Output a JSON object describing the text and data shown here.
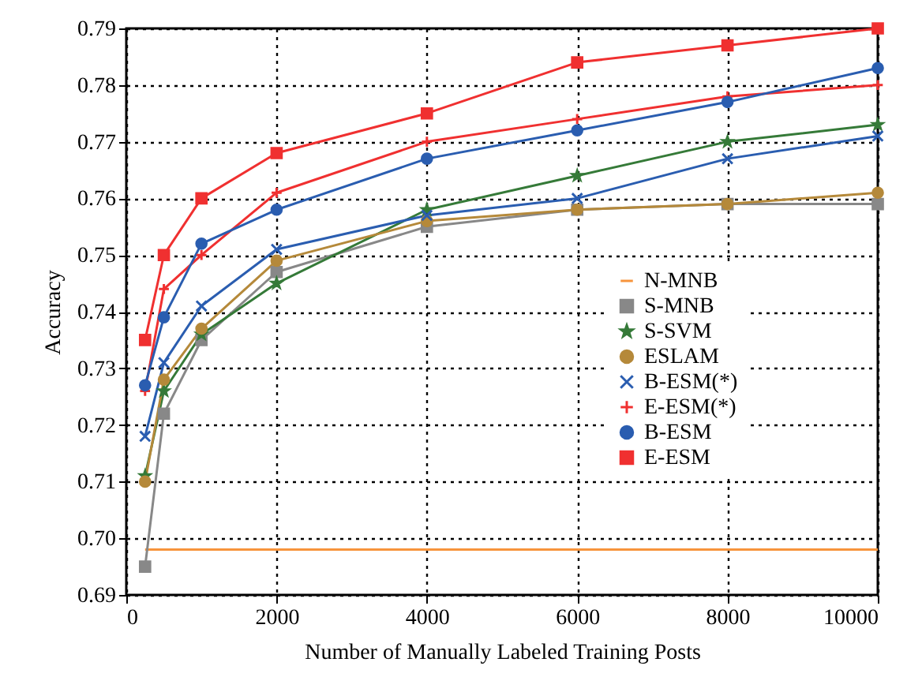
{
  "chart_data": {
    "type": "line",
    "xlabel": "Number of Manually Labeled Training Posts",
    "ylabel": "Accuracy",
    "x": [
      250,
      500,
      1000,
      2000,
      4000,
      6000,
      8000,
      10000
    ],
    "xlim": [
      0,
      10000
    ],
    "xticks": [
      0,
      2000,
      4000,
      6000,
      8000,
      10000
    ],
    "ylim": [
      0.69,
      0.79
    ],
    "yticks": [
      0.69,
      {
        "value": 0.7,
        "label": "0.70"
      },
      0.71,
      0.72,
      0.73,
      0.74,
      0.75,
      0.76,
      0.77,
      0.78,
      0.79
    ],
    "grid": true,
    "legend": "bottom right",
    "series": [
      {
        "name": "N-MNB",
        "color": "#f7943c",
        "marker": "none",
        "values": [
          0.698,
          0.698,
          0.698,
          0.698,
          0.698,
          0.698,
          0.698,
          0.698
        ]
      },
      {
        "name": "S-MNB",
        "color": "#888888",
        "marker": "square",
        "values": [
          0.695,
          0.722,
          0.735,
          0.747,
          0.755,
          0.758,
          0.759,
          0.759
        ]
      },
      {
        "name": "S-SVM",
        "color": "#357a38",
        "marker": "star",
        "values": [
          0.711,
          0.726,
          0.736,
          0.745,
          0.758,
          0.764,
          0.77,
          0.773
        ]
      },
      {
        "name": "ESLAM",
        "color": "#b5893a",
        "marker": "circle",
        "values": [
          0.71,
          0.728,
          0.737,
          0.749,
          0.756,
          0.758,
          0.759,
          0.761
        ]
      },
      {
        "name": "B-ESM(*)",
        "color": "#2a5db0",
        "marker": "cross",
        "values": [
          0.718,
          0.731,
          0.741,
          0.751,
          0.757,
          0.76,
          0.767,
          0.771
        ]
      },
      {
        "name": "E-ESM(*)",
        "color": "#f03030",
        "marker": "plus",
        "values": [
          0.726,
          0.744,
          0.75,
          0.761,
          0.77,
          0.774,
          0.778,
          0.78
        ]
      },
      {
        "name": "B-ESM",
        "color": "#2a5db0",
        "marker": "circle",
        "values": [
          0.727,
          0.739,
          0.752,
          0.758,
          0.767,
          0.772,
          0.777,
          0.783
        ]
      },
      {
        "name": "E-ESM",
        "color": "#f03030",
        "marker": "square",
        "values": [
          0.735,
          0.75,
          0.76,
          0.768,
          0.775,
          0.784,
          0.787,
          0.79
        ]
      }
    ]
  }
}
